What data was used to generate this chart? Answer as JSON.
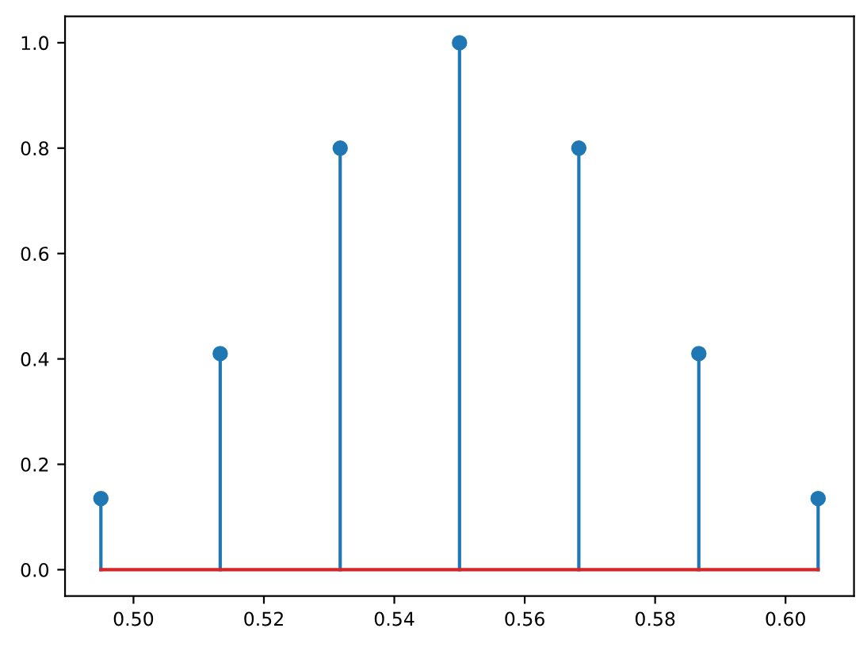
{
  "chart_data": {
    "type": "lollipop",
    "x": [
      0.495,
      0.5133,
      0.5317,
      0.55,
      0.5683,
      0.5867,
      0.605
    ],
    "series": [
      {
        "color": "#1f77b4",
        "values": [
          0.135,
          0.41,
          0.8,
          1.0,
          0.8,
          0.41,
          0.135
        ]
      }
    ],
    "marker": "circle",
    "xlim": [
      0.4895,
      0.6105
    ],
    "xticks": [
      {
        "value": 0.5,
        "label": "0.50"
      },
      0.52,
      0.54,
      0.56,
      0.58,
      {
        "value": 0.6,
        "label": "0.60"
      }
    ],
    "ylim": [
      -0.05,
      1.05
    ],
    "yticks": [
      {
        "value": 0,
        "label": "0.0"
      },
      0.2,
      0.4,
      0.6,
      0.8,
      {
        "value": 1,
        "label": "1.0"
      }
    ],
    "ref_lines": [
      {
        "axis": "y",
        "value": 0,
        "color": "#d62728"
      }
    ],
    "grid": false,
    "legend": false
  }
}
